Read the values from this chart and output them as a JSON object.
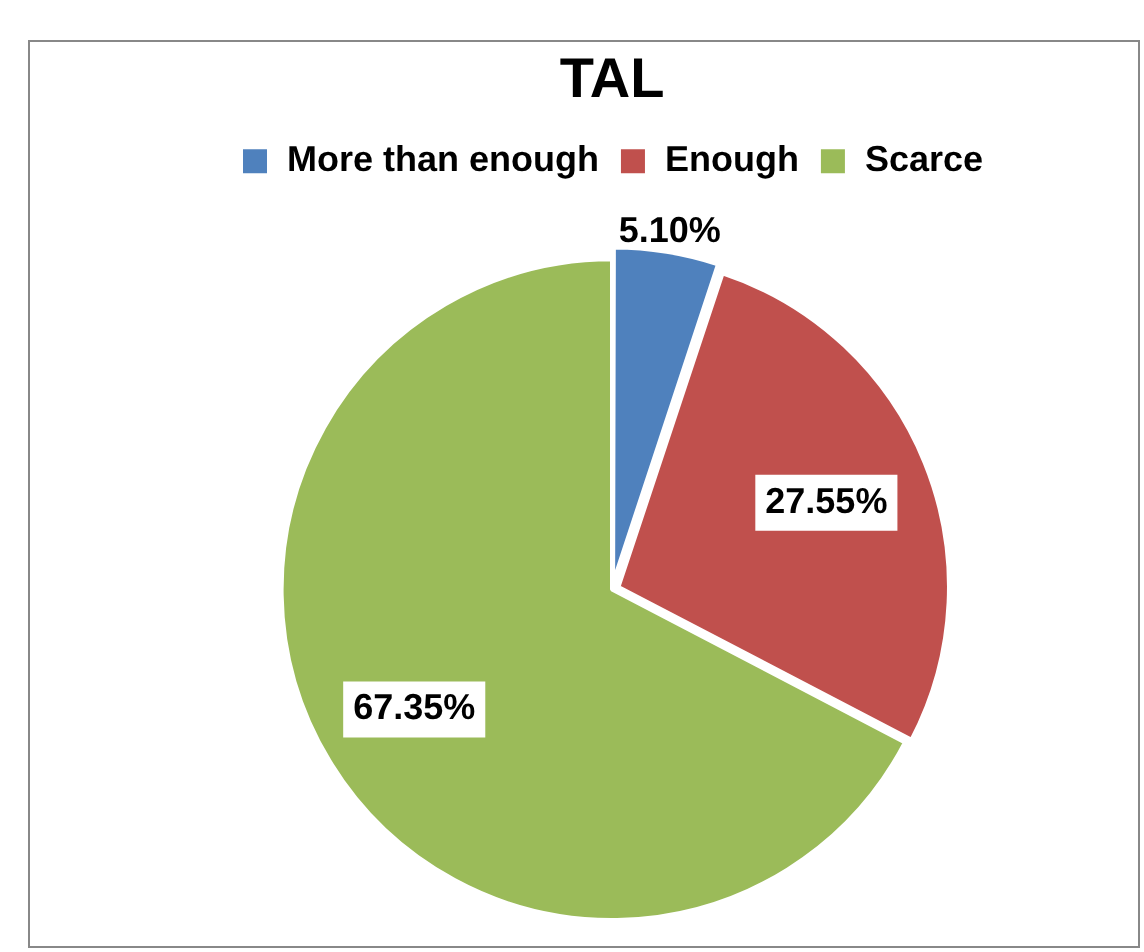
{
  "chart_data": {
    "type": "pie",
    "title": "TAL",
    "categories": [
      "More than enough",
      "Enough",
      "Scarce"
    ],
    "values": [
      5.1,
      27.55,
      67.35
    ],
    "colors": [
      "#4f81bd",
      "#c0504d",
      "#9bbb59"
    ],
    "value_labels": [
      "5.10%",
      "27.55%",
      "67.35%"
    ],
    "legend": "top"
  }
}
